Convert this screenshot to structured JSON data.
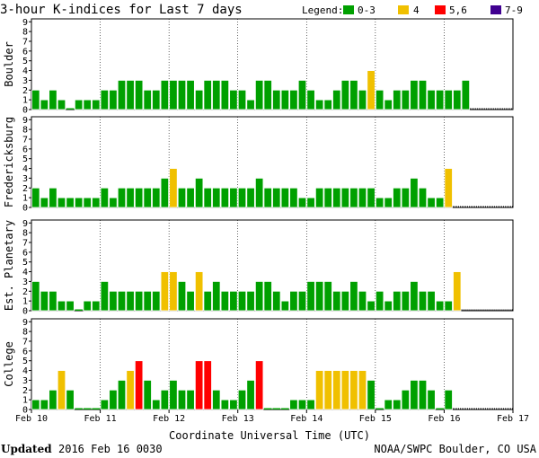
{
  "title": "3-hour K-indices for Last 7 days",
  "legend": {
    "label": "Legend:",
    "items": [
      {
        "label": "0-3",
        "color": "#00a000"
      },
      {
        "label": "4",
        "color": "#f0c000"
      },
      {
        "label": "5,6",
        "color": "#ff0000"
      },
      {
        "label": "7-9",
        "color": "#400090"
      }
    ]
  },
  "xlabel": "Coordinate Universal Time (UTC)",
  "x_ticks": [
    "Feb 10",
    "Feb 11",
    "Feb 12",
    "Feb 13",
    "Feb 14",
    "Feb 15",
    "Feb 16",
    "Feb 17"
  ],
  "updated": {
    "label": "Updated",
    "value": "2016 Feb 16 0030"
  },
  "credit": "NOAA/SWPC Boulder, CO USA",
  "chart_data": {
    "type": "bar",
    "title": "3-hour K-indices for Last 7 days",
    "xlabel": "Coordinate Universal Time (UTC)",
    "ylim": [
      0,
      9
    ],
    "y_ticks": [
      0,
      1,
      2,
      3,
      4,
      5,
      6,
      7,
      8,
      9
    ],
    "x_ticks": [
      "Feb 10",
      "Feb 11",
      "Feb 12",
      "Feb 13",
      "Feb 14",
      "Feb 15",
      "Feb 16",
      "Feb 17"
    ],
    "bars_per_day": 8,
    "color_scale": {
      "0-3": "#00a000",
      "4": "#f0c000",
      "5,6": "#ff0000",
      "7-9": "#400090"
    },
    "series": [
      {
        "name": "Boulder",
        "values": [
          2,
          1,
          2,
          1,
          0,
          1,
          1,
          1,
          2,
          2,
          3,
          3,
          3,
          2,
          2,
          3,
          3,
          3,
          3,
          2,
          3,
          3,
          3,
          2,
          2,
          1,
          3,
          3,
          2,
          2,
          2,
          3,
          2,
          1,
          1,
          2,
          3,
          3,
          2,
          4,
          2,
          1,
          2,
          2,
          3,
          3,
          2,
          2,
          2,
          2,
          3
        ]
      },
      {
        "name": "Fredericksburg",
        "values": [
          2,
          1,
          2,
          1,
          1,
          1,
          1,
          1,
          2,
          1,
          2,
          2,
          2,
          2,
          2,
          3,
          4,
          2,
          2,
          3,
          2,
          2,
          2,
          2,
          2,
          2,
          3,
          2,
          2,
          2,
          2,
          1,
          1,
          2,
          2,
          2,
          2,
          2,
          2,
          2,
          1,
          1,
          2,
          2,
          3,
          2,
          1,
          1,
          4
        ]
      },
      {
        "name": "Est. Planetary",
        "values": [
          3,
          2,
          2,
          1,
          1,
          0,
          1,
          1,
          3,
          2,
          2,
          2,
          2,
          2,
          2,
          4,
          4,
          3,
          2,
          4,
          2,
          3,
          2,
          2,
          2,
          2,
          3,
          3,
          2,
          1,
          2,
          2,
          3,
          3,
          3,
          2,
          2,
          3,
          2,
          1,
          2,
          1,
          2,
          2,
          3,
          2,
          2,
          1,
          1,
          4
        ]
      },
      {
        "name": "College",
        "values": [
          1,
          1,
          2,
          4,
          2,
          0,
          0,
          0,
          1,
          2,
          3,
          4,
          5,
          3,
          1,
          2,
          3,
          2,
          2,
          5,
          5,
          2,
          1,
          1,
          2,
          3,
          5,
          0,
          0,
          0,
          1,
          1,
          1,
          4,
          4,
          4,
          4,
          4,
          4,
          3,
          0,
          1,
          1,
          2,
          3,
          3,
          2,
          0,
          2
        ]
      }
    ]
  }
}
